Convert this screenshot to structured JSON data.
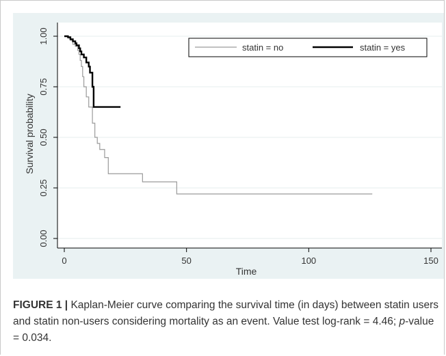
{
  "chart_data": {
    "type": "line",
    "title": "",
    "xlabel": "Time",
    "ylabel": "Survival probability",
    "xlim": [
      0,
      150
    ],
    "ylim": [
      0,
      1
    ],
    "x_ticks": [
      "0",
      "50",
      "100",
      "150"
    ],
    "y_ticks": [
      "0.00",
      "0.25",
      "0.50",
      "0.75",
      "1.00"
    ],
    "grid": true,
    "legend_position": "top-right",
    "step": true,
    "series": [
      {
        "name": "statin = no",
        "color": "#9a9a9a",
        "points": [
          [
            0,
            1
          ],
          [
            1.5,
            0.99
          ],
          [
            2.5,
            0.98
          ],
          [
            3.5,
            0.96
          ],
          [
            4.5,
            0.95
          ],
          [
            5.5,
            0.93
          ],
          [
            6,
            0.91
          ],
          [
            6.5,
            0.88
          ],
          [
            7,
            0.85
          ],
          [
            7.5,
            0.8
          ],
          [
            8,
            0.75
          ],
          [
            9,
            0.7
          ],
          [
            10,
            0.65
          ],
          [
            11.5,
            0.57
          ],
          [
            12.5,
            0.5
          ],
          [
            13.5,
            0.47
          ],
          [
            14.5,
            0.44
          ],
          [
            16.5,
            0.4
          ],
          [
            18,
            0.32
          ],
          [
            32,
            0.28
          ],
          [
            46,
            0.22
          ],
          [
            126,
            0.22
          ]
        ]
      },
      {
        "name": "statin = yes",
        "color": "#000000",
        "points": [
          [
            0,
            1
          ],
          [
            1.5,
            0.995
          ],
          [
            2.5,
            0.985
          ],
          [
            3.5,
            0.975
          ],
          [
            4.5,
            0.965
          ],
          [
            5,
            0.955
          ],
          [
            6,
            0.94
          ],
          [
            6.5,
            0.925
          ],
          [
            7,
            0.91
          ],
          [
            8,
            0.895
          ],
          [
            9,
            0.87
          ],
          [
            10,
            0.85
          ],
          [
            10.5,
            0.82
          ],
          [
            11.5,
            0.75
          ],
          [
            12,
            0.65
          ],
          [
            23,
            0.65
          ]
        ]
      }
    ]
  },
  "caption": {
    "label": "FIGURE 1 |",
    "text_before": " Kaplan-Meier curve comparing the survival time (in days) between statin users and statin non-users considering mortality as an event. Value test log-rank = 4.46; ",
    "pvalue_label": "p",
    "text_after": "-value = 0.034."
  }
}
